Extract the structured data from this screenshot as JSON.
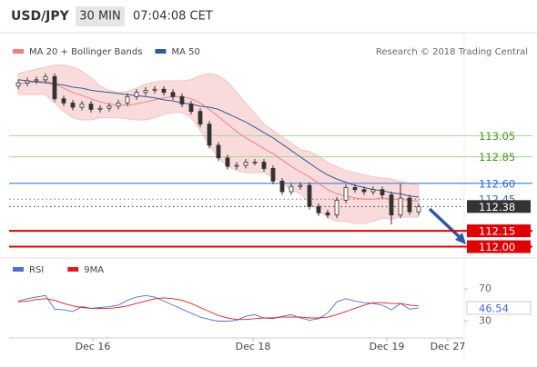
{
  "header": {
    "symbol": "USD/JPY",
    "timeframe": "30 MIN",
    "time": "07:04:08 CET"
  },
  "chart_data": [
    {
      "type": "candlestick",
      "source": "Research © 2018 Trading Central",
      "candle_color": "#333333",
      "open": [
        113.52,
        113.55,
        113.57,
        113.58,
        113.61,
        113.4,
        113.36,
        113.32,
        113.35,
        113.3,
        113.31,
        113.33,
        113.36,
        113.42,
        113.46,
        113.48,
        113.49,
        113.46,
        113.42,
        113.35,
        113.28,
        113.16,
        112.96,
        112.84,
        112.76,
        112.77,
        112.8,
        112.8,
        112.74,
        112.62,
        112.52,
        112.57,
        112.58,
        112.38,
        112.32,
        112.3,
        112.44,
        112.56,
        112.54,
        112.52,
        112.54,
        112.49,
        112.3,
        112.46,
        112.33
      ],
      "high": [
        113.58,
        113.6,
        113.61,
        113.64,
        113.64,
        113.43,
        113.39,
        113.38,
        113.38,
        113.34,
        113.36,
        113.39,
        113.45,
        113.49,
        113.51,
        113.52,
        113.52,
        113.49,
        113.45,
        113.38,
        113.31,
        113.19,
        112.99,
        112.87,
        112.8,
        112.83,
        112.83,
        112.83,
        112.77,
        112.65,
        112.6,
        112.61,
        112.61,
        112.41,
        112.35,
        112.47,
        112.59,
        112.59,
        112.57,
        112.57,
        112.57,
        112.52,
        112.6,
        112.49,
        112.41
      ],
      "low": [
        113.49,
        113.52,
        113.54,
        113.55,
        113.37,
        113.33,
        113.29,
        113.29,
        113.27,
        113.27,
        113.28,
        113.3,
        113.33,
        113.39,
        113.43,
        113.45,
        113.43,
        113.39,
        113.32,
        113.25,
        113.13,
        112.93,
        112.81,
        112.73,
        112.73,
        112.74,
        112.77,
        112.71,
        112.59,
        112.49,
        112.49,
        112.54,
        112.35,
        112.29,
        112.27,
        112.27,
        112.41,
        112.51,
        112.49,
        112.49,
        112.46,
        112.21,
        112.27,
        112.3,
        112.3
      ],
      "close": [
        113.55,
        113.57,
        113.58,
        113.61,
        113.4,
        113.36,
        113.32,
        113.35,
        113.3,
        113.31,
        113.33,
        113.36,
        113.42,
        113.46,
        113.48,
        113.49,
        113.46,
        113.42,
        113.35,
        113.28,
        113.16,
        112.96,
        112.84,
        112.76,
        112.77,
        112.8,
        112.8,
        112.74,
        112.62,
        112.52,
        112.57,
        112.58,
        112.38,
        112.32,
        112.3,
        112.44,
        112.56,
        112.54,
        112.52,
        112.54,
        112.49,
        112.3,
        112.46,
        112.33,
        112.38
      ],
      "series": [
        {
          "name": "MA 20 + Bollinger Bands",
          "color": "#f08080",
          "band_color": "#f7c3c3",
          "values": [
            113.54,
            113.55,
            113.56,
            113.57,
            113.54,
            113.5,
            113.46,
            113.43,
            113.4,
            113.37,
            113.35,
            113.34,
            113.34,
            113.35,
            113.37,
            113.39,
            113.41,
            113.42,
            113.42,
            113.4,
            113.36,
            113.3,
            113.23,
            113.16,
            113.09,
            113.03,
            112.98,
            112.93,
            112.88,
            112.82,
            112.76,
            112.71,
            112.66,
            112.6,
            112.54,
            112.5,
            112.48,
            112.46,
            112.45,
            112.45,
            112.46,
            112.45,
            112.45,
            112.44,
            112.43
          ],
          "upper": [
            113.64,
            113.66,
            113.68,
            113.7,
            113.72,
            113.72,
            113.7,
            113.66,
            113.6,
            113.52,
            113.48,
            113.46,
            113.47,
            113.5,
            113.54,
            113.56,
            113.57,
            113.57,
            113.57,
            113.58,
            113.62,
            113.64,
            113.62,
            113.56,
            113.46,
            113.36,
            113.26,
            113.16,
            113.1,
            113.04,
            112.98,
            112.92,
            112.9,
            112.86,
            112.8,
            112.76,
            112.72,
            112.7,
            112.68,
            112.66,
            112.65,
            112.64,
            112.62,
            112.6,
            112.58
          ],
          "lower": [
            113.44,
            113.44,
            113.44,
            113.44,
            113.36,
            113.28,
            113.22,
            113.2,
            113.2,
            113.22,
            113.22,
            113.22,
            113.21,
            113.2,
            113.2,
            113.22,
            113.25,
            113.27,
            113.27,
            113.22,
            113.1,
            112.96,
            112.84,
            112.76,
            112.72,
            112.7,
            112.7,
            112.7,
            112.66,
            112.6,
            112.54,
            112.5,
            112.42,
            112.34,
            112.28,
            112.24,
            112.24,
            112.22,
            112.22,
            112.24,
            112.27,
            112.26,
            112.28,
            112.28,
            112.28
          ]
        },
        {
          "name": "MA 50",
          "color": "#2e5c99",
          "values": [
            113.58,
            113.57,
            113.56,
            113.55,
            113.54,
            113.53,
            113.51,
            113.5,
            113.48,
            113.47,
            113.46,
            113.45,
            113.44,
            113.43,
            113.42,
            113.41,
            113.39,
            113.38,
            113.36,
            113.35,
            113.33,
            113.32,
            113.3,
            113.26,
            113.22,
            113.18,
            113.13,
            113.08,
            113.03,
            112.97,
            112.91,
            112.85,
            112.79,
            112.73,
            112.68,
            112.64,
            112.61,
            112.58,
            112.56,
            112.54,
            112.53,
            112.51,
            112.5,
            112.48,
            112.47
          ]
        }
      ],
      "hlines": [
        {
          "value": 113.05,
          "color": "#a8d58c",
          "text_color": "#3f9a1f",
          "width": 1,
          "dashed": false,
          "boxed": false
        },
        {
          "value": 112.85,
          "color": "#a8d58c",
          "text_color": "#3f9a1f",
          "width": 1,
          "dashed": false,
          "boxed": false
        },
        {
          "value": 112.6,
          "label": "112.60",
          "color": "#6a9be0",
          "text_color": "#2f6bc8",
          "width": 1.5,
          "dashed": false,
          "boxed": false
        },
        {
          "value": 112.45,
          "color": "#777777",
          "text_color": "#2f6bc8",
          "width": 1,
          "dashed": true,
          "boxed": false
        },
        {
          "value": 112.38,
          "color": "#333333",
          "text_color": "#ffffff",
          "width": 1,
          "dashed": true,
          "boxed": true
        },
        {
          "value": 112.15,
          "color": "#e00000",
          "text_color": "#ffffff",
          "width": 2,
          "dashed": false,
          "boxed": true
        },
        {
          "value": 112.0,
          "label": "112.00",
          "color": "#e00000",
          "text_color": "#ffffff",
          "width": 2,
          "dashed": false,
          "boxed": true
        }
      ],
      "xlim": [
        -1,
        49
      ],
      "ylim": [
        111.91,
        113.69
      ]
    },
    {
      "type": "line",
      "series": [
        {
          "name": "RSI",
          "color": "#4a6fd8",
          "values": [
            55,
            58,
            60,
            62,
            45,
            44,
            42,
            48,
            46,
            47,
            48,
            50,
            56,
            60,
            62,
            60,
            55,
            50,
            45,
            40,
            35,
            32,
            30,
            30,
            31,
            36,
            38,
            34,
            33,
            36,
            38,
            34,
            31,
            33,
            40,
            54,
            58,
            55,
            53,
            52,
            50,
            44,
            52,
            45,
            46.54
          ]
        },
        {
          "name": "9MA",
          "color": "#e31a1c",
          "values": [
            54,
            55,
            57,
            58,
            56,
            52,
            49,
            47,
            46,
            46,
            46,
            47,
            49,
            52,
            55,
            58,
            59,
            58,
            56,
            52,
            47,
            42,
            37,
            34,
            32,
            32,
            33,
            34,
            34,
            35,
            35,
            35,
            34,
            34,
            35,
            38,
            42,
            46,
            50,
            53,
            53,
            52,
            52,
            50,
            49
          ]
        }
      ],
      "xlim": [
        -1,
        49
      ],
      "ylim": [
        9,
        85
      ],
      "yticks": [
        30,
        70
      ],
      "xticks": [
        {
          "value": 8.2,
          "label": "Dec 16"
        },
        {
          "value": 25.8,
          "label": "Dec 18"
        },
        {
          "value": 40.5,
          "label": "Dec 19"
        },
        {
          "value": 47.2,
          "label": "Dec 27"
        }
      ]
    }
  ]
}
